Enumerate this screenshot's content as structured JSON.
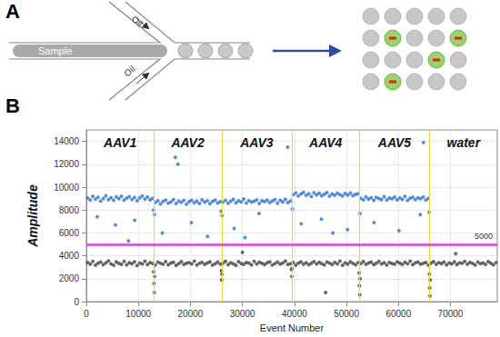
{
  "figure_labels": [
    "A",
    "B"
  ],
  "diagram": {
    "sample": "Sample",
    "oil_top": "Oil",
    "oil_bottom": "Oil"
  },
  "chart_data": {
    "type": "scatter",
    "xlabel": "Event Number",
    "ylabel": "Amplitude",
    "xlim": [
      0,
      79000
    ],
    "xticks": [
      0,
      10000,
      20000,
      30000,
      40000,
      50000,
      60000,
      70000
    ],
    "ylim": [
      0,
      15000
    ],
    "yticks": [
      0,
      2000,
      4000,
      6000,
      8000,
      10000,
      12000,
      14000
    ],
    "grid": true,
    "threshold": 5000,
    "wells": [
      {
        "label": "AAV1",
        "start": 0,
        "end": 13000
      },
      {
        "label": "AAV2",
        "start": 13000,
        "end": 26000
      },
      {
        "label": "AAV3",
        "start": 26000,
        "end": 39500
      },
      {
        "label": "AAV4",
        "start": 39500,
        "end": 52500
      },
      {
        "label": "AAV5",
        "start": 52500,
        "end": 66000
      },
      {
        "label": "water",
        "start": 66000,
        "end": 79000
      }
    ],
    "series": [
      {
        "color": "#2b6fd8",
        "x": [
          250,
          750,
          1250,
          1750,
          2250,
          2750,
          3250,
          3750,
          4250,
          4750,
          5250,
          5750,
          6250,
          6750,
          7250,
          7750,
          8250,
          8750,
          9250,
          9750,
          10250,
          10750,
          11250,
          11750,
          12250,
          12750,
          13250,
          13750,
          14250,
          14750,
          15250,
          15750,
          16250,
          16750,
          17250,
          17750,
          18250,
          18750,
          19250,
          19750,
          20250,
          20750,
          21250,
          21750,
          22250,
          22750,
          23250,
          23750,
          24250,
          24750,
          25250,
          25750,
          26250,
          26750,
          27250,
          27750,
          28250,
          28750,
          29250,
          29750,
          30250,
          30750,
          31250,
          31750,
          32250,
          32750,
          33250,
          33750,
          34250,
          34750,
          35250,
          35750,
          36250,
          36750,
          37250,
          37750,
          38250,
          38750,
          39250,
          39750,
          40250,
          40750,
          41250,
          41750,
          42250,
          42750,
          43250,
          43750,
          44250,
          44750,
          45250,
          45750,
          46250,
          46750,
          47250,
          47750,
          48250,
          48750,
          49250,
          49750,
          50250,
          50750,
          51250,
          51750,
          52250,
          52750,
          53250,
          53750,
          54250,
          54750,
          55250,
          55750,
          56250,
          56750,
          57250,
          57750,
          58250,
          58750,
          59250,
          59750,
          60250,
          60750,
          61250,
          61750,
          62250,
          62750,
          63250,
          63750,
          64250,
          64750,
          65250,
          65750,
          2100,
          5600,
          9300,
          12900,
          13100,
          14600,
          17100,
          17600,
          20200,
          23300,
          25900,
          26100,
          28400,
          33200,
          38700,
          39600,
          41300,
          45200,
          47400,
          52600,
          55300,
          60100,
          64800,
          64200,
          65900,
          8100,
          30500,
          50200
        ],
        "values": [
          9050,
          8880,
          9200,
          8950,
          9120,
          8800,
          9010,
          9250,
          8920,
          9080,
          8850,
          9150,
          8990,
          9210,
          8870,
          9040,
          9180,
          8930,
          9100,
          8820,
          9060,
          9230,
          8960,
          9140,
          8900,
          9020,
          8650,
          8820,
          8540,
          8760,
          8880,
          8600,
          8720,
          8910,
          8580,
          8790,
          8680,
          8850,
          8520,
          8740,
          8860,
          8630,
          8780,
          8570,
          8900,
          8690,
          8810,
          8560,
          8750,
          8870,
          8610,
          8730,
          8700,
          8860,
          8590,
          8780,
          8930,
          8640,
          8810,
          8720,
          8950,
          8610,
          8840,
          8690,
          8770,
          8900,
          8580,
          8820,
          8740,
          8880,
          8650,
          8790,
          8920,
          8600,
          8850,
          8710,
          8940,
          8660,
          8800,
          9350,
          9480,
          9220,
          9400,
          9550,
          9280,
          9430,
          9190,
          9500,
          9320,
          9460,
          9250,
          9380,
          9520,
          9210,
          9410,
          9290,
          9470,
          9340,
          9230,
          9440,
          9310,
          9490,
          9260,
          9370,
          9420,
          9020,
          8890,
          9150,
          8960,
          9080,
          8850,
          9110,
          9000,
          8920,
          9170,
          8870,
          9050,
          8980,
          9130,
          8900,
          9060,
          8940,
          9190,
          8860,
          9030,
          9120,
          8910,
          9070,
          8990,
          9140,
          8880,
          9010,
          7400,
          6700,
          7100,
          8000,
          7600,
          6000,
          12600,
          12000,
          6900,
          5700,
          7900,
          7500,
          6400,
          7700,
          13500,
          8100,
          6800,
          7200,
          6000,
          7700,
          6900,
          6200,
          13900,
          7600,
          7800,
          5300,
          5600,
          6300
        ]
      },
      {
        "color": "#404040",
        "x": [
          250,
          750,
          1250,
          1750,
          2250,
          2750,
          3250,
          3750,
          4250,
          4750,
          5250,
          5750,
          6250,
          6750,
          7250,
          7750,
          8250,
          8750,
          9250,
          9750,
          10250,
          10750,
          11250,
          11750,
          12250,
          12750,
          13250,
          13750,
          14250,
          14750,
          15250,
          15750,
          16250,
          16750,
          17250,
          17750,
          18250,
          18750,
          19250,
          19750,
          20250,
          20750,
          21250,
          21750,
          22250,
          22750,
          23250,
          23750,
          24250,
          24750,
          25250,
          25750,
          26250,
          26750,
          27250,
          27750,
          28250,
          28750,
          29250,
          29750,
          30250,
          30750,
          31250,
          31750,
          32250,
          32750,
          33250,
          33750,
          34250,
          34750,
          35250,
          35750,
          36250,
          36750,
          37250,
          37750,
          38250,
          38750,
          39250,
          39750,
          40250,
          40750,
          41250,
          41750,
          42250,
          42750,
          43250,
          43750,
          44250,
          44750,
          45250,
          45750,
          46250,
          46750,
          47250,
          47750,
          48250,
          48750,
          49250,
          49750,
          50250,
          50750,
          51250,
          51750,
          52250,
          52750,
          53250,
          53750,
          54250,
          54750,
          55250,
          55750,
          56250,
          56750,
          57250,
          57750,
          58250,
          58750,
          59250,
          59750,
          60250,
          60750,
          61250,
          61750,
          62250,
          62750,
          63250,
          63750,
          64250,
          64750,
          65250,
          65750,
          66250,
          66750,
          67250,
          67750,
          68250,
          68750,
          69250,
          69750,
          70250,
          70750,
          71250,
          71750,
          72250,
          72750,
          73250,
          73750,
          74250,
          74750,
          75250,
          75750,
          76250,
          76750,
          77250,
          77750,
          78250,
          78750,
          12950,
          13000,
          13050,
          13100,
          25950,
          26000,
          26050,
          39450,
          39500,
          39550,
          52450,
          52500,
          52550,
          52600,
          65950,
          66000,
          66050,
          66100,
          46000,
          30000,
          71000
        ],
        "values": [
          3420,
          3280,
          3510,
          3190,
          3360,
          3450,
          3230,
          3390,
          3550,
          3300,
          3180,
          3470,
          3340,
          3260,
          3520,
          3210,
          3400,
          3310,
          3480,
          3150,
          3370,
          3290,
          3530,
          3240,
          3410,
          3330,
          3200,
          3460,
          3350,
          3270,
          3500,
          3220,
          3380,
          3440,
          3170,
          3320,
          3490,
          3250,
          3360,
          3410,
          3290,
          3540,
          3200,
          3350,
          3430,
          3260,
          3380,
          3470,
          3190,
          3310,
          3450,
          3280,
          3360,
          3520,
          3230,
          3400,
          3300,
          3180,
          3490,
          3340,
          3260,
          3420,
          3370,
          3210,
          3510,
          3290,
          3440,
          3350,
          3240,
          3390,
          3470,
          3200,
          3330,
          3460,
          3280,
          3380,
          3530,
          3250,
          3310,
          3420,
          3190,
          3360,
          3480,
          3270,
          3400,
          3230,
          3350,
          3500,
          3290,
          3440,
          3320,
          3210,
          3460,
          3370,
          3250,
          3430,
          3300,
          3540,
          3180,
          3390,
          3280,
          3470,
          3350,
          3220,
          3410,
          3330,
          3490,
          3260,
          3380,
          3450,
          3240,
          3360,
          3510,
          3290,
          3400,
          3200,
          3430,
          3340,
          3270,
          3480,
          3370,
          3250,
          3440,
          3310,
          3530,
          3230,
          3390,
          3460,
          3280,
          3350,
          3420,
          3190,
          3360,
          3500,
          3260,
          3410,
          3320,
          3450,
          3210,
          3380,
          3300,
          3470,
          3240,
          3390,
          3350,
          3520,
          3270,
          3430,
          3340,
          3200,
          3460,
          3310,
          3380,
          3250,
          3490,
          3360,
          3220,
          3410,
          2600,
          1600,
          800,
          2200,
          2700,
          1900,
          2400,
          2800,
          2200,
          2900,
          2500,
          1400,
          600,
          2000,
          2400,
          1200,
          500,
          1900,
          800,
          4300,
          4200
        ]
      }
    ]
  }
}
